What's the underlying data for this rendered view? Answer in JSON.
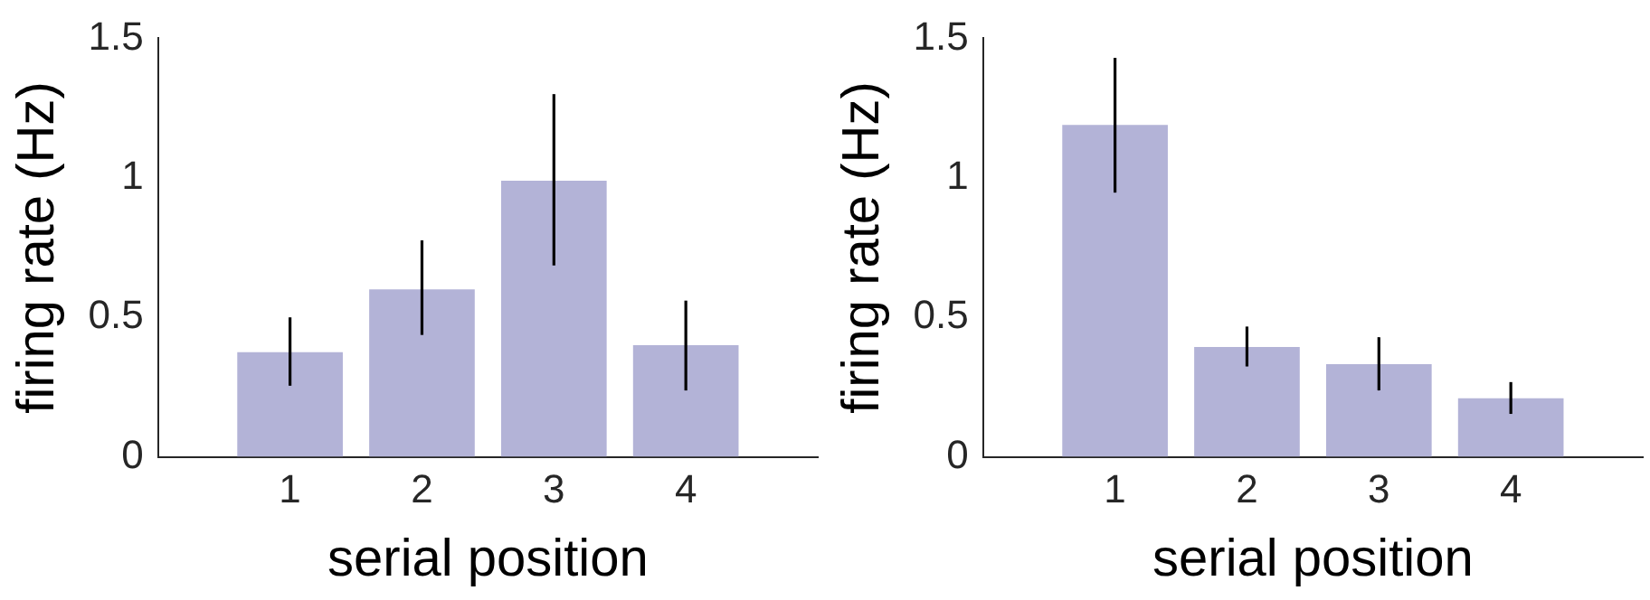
{
  "chart_data": [
    {
      "type": "bar",
      "xlabel": "serial position",
      "ylabel": "firing rate (Hz)",
      "x": [
        1,
        2,
        3,
        4
      ],
      "xlim": [
        0,
        5
      ],
      "xticks": [
        1,
        2,
        3,
        4
      ],
      "ylim": [
        0,
        1.5
      ],
      "yticks": [
        0,
        0.5,
        1,
        1.5
      ],
      "color": "#b3b3d7",
      "grid": false,
      "legend": false,
      "values": [
        0.375,
        0.6,
        0.99,
        0.4
      ],
      "errors": [
        [
          0.255,
          0.5
        ],
        [
          0.437,
          0.776
        ],
        [
          0.686,
          1.3
        ],
        [
          0.238,
          0.56
        ]
      ]
    },
    {
      "type": "bar",
      "xlabel": "serial position",
      "ylabel": "firing rate (Hz)",
      "x": [
        1,
        2,
        3,
        4
      ],
      "xlim": [
        0,
        5
      ],
      "xticks": [
        1,
        2,
        3,
        4
      ],
      "ylim": [
        0,
        1.5
      ],
      "yticks": [
        0,
        0.5,
        1,
        1.5
      ],
      "color": "#b3b3d7",
      "grid": false,
      "legend": false,
      "values": [
        1.19,
        0.394,
        0.332,
        0.21
      ],
      "errors": [
        [
          0.947,
          1.43
        ],
        [
          0.324,
          0.467
        ],
        [
          0.238,
          0.429
        ],
        [
          0.154,
          0.268
        ]
      ]
    }
  ]
}
